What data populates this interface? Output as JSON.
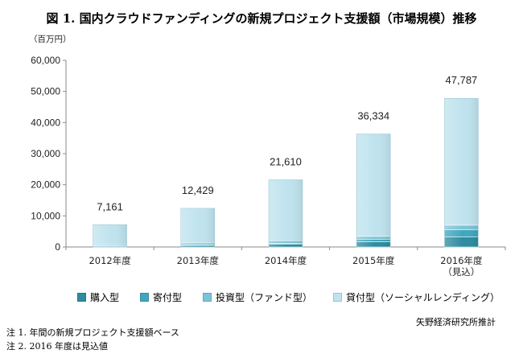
{
  "chart_data": {
    "type": "bar",
    "stacked": true,
    "title": "図 1. 国内クラウドファンディングの新規プロジェクト支援額（市場規模）推移",
    "unit_label": "（百万円）",
    "categories": [
      [
        "2012年度"
      ],
      [
        "2013年度"
      ],
      [
        "2014年度"
      ],
      [
        "2015年度"
      ],
      [
        "2016年度",
        "（見込）"
      ]
    ],
    "totals": [
      7161,
      12429,
      21610,
      36334,
      47787
    ],
    "total_labels": [
      "7,161",
      "12,429",
      "21,610",
      "36,334",
      "47,787"
    ],
    "ylim": [
      0,
      60000
    ],
    "yticks": [
      "0",
      "10,000",
      "20,000",
      "30,000",
      "40,000",
      "50,000",
      "60,000"
    ],
    "grid": false,
    "legend_position": "bottom",
    "series": [
      {
        "name": "購入型",
        "values": [
          300,
          500,
          900,
          1700,
          3200
        ],
        "color": "#2E8BA0"
      },
      {
        "name": "寄付型",
        "values": [
          100,
          200,
          300,
          800,
          2300
        ],
        "color": "#3FA7BD"
      },
      {
        "name": "投資型（ファンド型）",
        "values": [
          400,
          600,
          800,
          900,
          1500
        ],
        "color": "#7CC3D6"
      },
      {
        "name": "貸付型（ソーシャルレンディング）",
        "values": [
          6361,
          11129,
          19610,
          32934,
          40787
        ],
        "color": "#BFE3EE"
      }
    ]
  },
  "source": "矢野経済研究所推計",
  "notes": [
    "注 1. 年間の新規プロジェクト支援額ベース",
    "注 2. 2016 年度は見込値"
  ]
}
